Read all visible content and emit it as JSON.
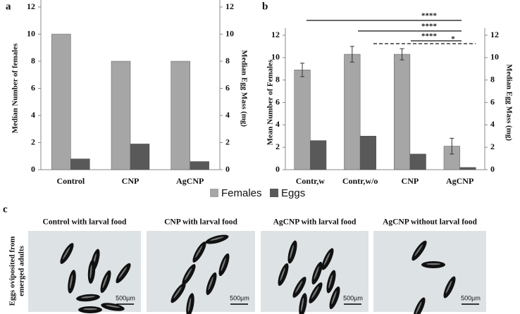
{
  "chart_data": [
    {
      "type": "bar",
      "panel_label": "a",
      "categories": [
        "Control",
        "CNP",
        "AgCNP"
      ],
      "y_label": "Median Number of  females",
      "y2_label": "Median Egg Mass (mg)",
      "ylim": [
        0,
        12
      ],
      "yticks": [
        0,
        2,
        4,
        6,
        8,
        10,
        12
      ],
      "y2lim": [
        0,
        12
      ],
      "y2ticks": [
        0,
        2,
        4,
        6,
        8,
        10,
        12
      ],
      "series": [
        {
          "name": "Females",
          "color": "#a6a6a6",
          "values": [
            10,
            8,
            8
          ]
        },
        {
          "name": "Eggs",
          "color": "#595959",
          "axis": "y2",
          "values": [
            0.8,
            1.9,
            0.6
          ]
        }
      ]
    },
    {
      "type": "bar",
      "panel_label": "b",
      "categories": [
        "Contr,w",
        "Contr,w/o",
        "CNP",
        "AgCNP"
      ],
      "y_label": "Mean Number of Females",
      "y2_label": "Median Egg Mass (mg)",
      "ylim": [
        0,
        12
      ],
      "yticks": [
        0,
        2,
        4,
        6,
        8,
        10,
        12
      ],
      "y2lim": [
        0,
        12
      ],
      "y2ticks": [
        0,
        2,
        4,
        6,
        8,
        10,
        12
      ],
      "series": [
        {
          "name": "Females",
          "color": "#a6a6a6",
          "values": [
            8.9,
            10.3,
            10.3,
            2.1
          ],
          "errors": [
            0.6,
            0.7,
            0.5,
            0.7
          ]
        },
        {
          "name": "Eggs",
          "color": "#595959",
          "axis": "y2",
          "values": [
            2.6,
            3.0,
            1.4,
            0.2
          ]
        }
      ],
      "annotations": [
        "****",
        "****",
        "****",
        "*"
      ],
      "legend": "bottom"
    }
  ],
  "panel_c": {
    "panel_label": "c",
    "y_label": [
      "Eggs oviposited from",
      "emerged adults"
    ],
    "titles": [
      "Control with larval food",
      "CNP with larval food",
      "AgCNP with larval food",
      "AgCNP without larval food"
    ],
    "scale_bar": "500µm"
  }
}
